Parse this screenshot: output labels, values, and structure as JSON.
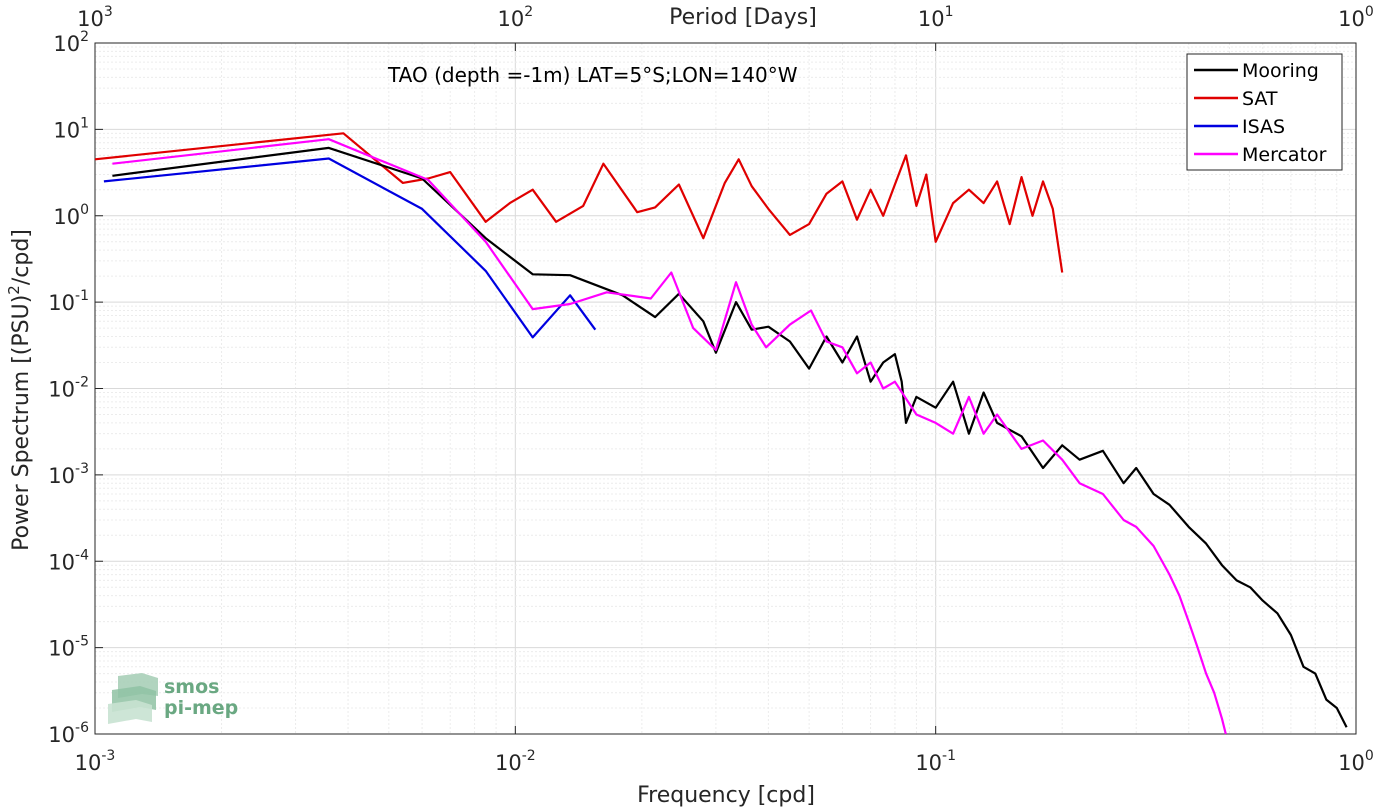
{
  "chart_data": {
    "type": "line",
    "title": "",
    "annotation": "TAO (depth =-1m) LAT=5°S;LON=140°W",
    "xlabel": "Frequency [cpd]",
    "ylabel": "Power Spectrum [(PSU)²/cpd]",
    "top_xlabel": "Period [Days]",
    "xscale": "log",
    "yscale": "log",
    "xlim": [
      0.001,
      1
    ],
    "ylim": [
      1e-06,
      100
    ],
    "top_xlim": [
      1000,
      1
    ],
    "grid": true,
    "legend_position": "top-right",
    "x_ticks": [
      {
        "v": 0.001,
        "base": "10",
        "exp": "-3"
      },
      {
        "v": 0.01,
        "base": "10",
        "exp": "-2"
      },
      {
        "v": 0.1,
        "base": "10",
        "exp": "-1"
      },
      {
        "v": 1,
        "base": "10",
        "exp": "0"
      }
    ],
    "top_ticks": [
      {
        "v": 0.001,
        "base": "10",
        "exp": "3"
      },
      {
        "v": 0.01,
        "base": "10",
        "exp": "2"
      },
      {
        "v": 0.1,
        "base": "10",
        "exp": "1"
      },
      {
        "v": 1,
        "base": "10",
        "exp": "0"
      }
    ],
    "y_ticks": [
      {
        "v": 100,
        "base": "10",
        "exp": "2"
      },
      {
        "v": 10,
        "base": "10",
        "exp": "1"
      },
      {
        "v": 1,
        "base": "10",
        "exp": "0"
      },
      {
        "v": 0.1,
        "base": "10",
        "exp": "-1"
      },
      {
        "v": 0.01,
        "base": "10",
        "exp": "-2"
      },
      {
        "v": 0.001,
        "base": "10",
        "exp": "-3"
      },
      {
        "v": 0.0001,
        "base": "10",
        "exp": "-4"
      },
      {
        "v": 1e-05,
        "base": "10",
        "exp": "-5"
      },
      {
        "v": 1e-06,
        "base": "10",
        "exp": "-6"
      }
    ],
    "series": [
      {
        "name": "Mooring",
        "color": "#000000",
        "x": [
          0.0011,
          0.0036,
          0.006,
          0.0085,
          0.011,
          0.0135,
          0.018,
          0.0215,
          0.0245,
          0.028,
          0.03,
          0.0335,
          0.0365,
          0.04,
          0.045,
          0.05,
          0.055,
          0.06,
          0.065,
          0.07,
          0.075,
          0.08,
          0.083,
          0.085,
          0.09,
          0.1,
          0.11,
          0.12,
          0.13,
          0.14,
          0.16,
          0.18,
          0.2,
          0.22,
          0.25,
          0.28,
          0.3,
          0.33,
          0.36,
          0.4,
          0.44,
          0.48,
          0.52,
          0.56,
          0.6,
          0.65,
          0.7,
          0.75,
          0.8,
          0.85,
          0.9,
          0.95
        ],
        "y": [
          2.9,
          6.1,
          2.7,
          0.55,
          0.21,
          0.205,
          0.12,
          0.067,
          0.125,
          0.06,
          0.026,
          0.1,
          0.048,
          0.052,
          0.035,
          0.017,
          0.04,
          0.02,
          0.04,
          0.012,
          0.02,
          0.025,
          0.012,
          0.004,
          0.008,
          0.006,
          0.012,
          0.003,
          0.009,
          0.004,
          0.0028,
          0.0012,
          0.0022,
          0.0015,
          0.0019,
          0.0008,
          0.0012,
          0.0006,
          0.00045,
          0.00025,
          0.00016,
          9e-05,
          6e-05,
          5e-05,
          3.5e-05,
          2.5e-05,
          1.4e-05,
          6e-06,
          5e-06,
          2.5e-06,
          2e-06,
          1.2e-06
        ]
      },
      {
        "name": "SAT",
        "color": "#e00000",
        "x": [
          0.001,
          0.0039,
          0.0054,
          0.0062,
          0.007,
          0.0085,
          0.0097,
          0.011,
          0.0125,
          0.0145,
          0.0162,
          0.0195,
          0.0215,
          0.0245,
          0.028,
          0.0315,
          0.034,
          0.0365,
          0.04,
          0.045,
          0.05,
          0.055,
          0.06,
          0.065,
          0.07,
          0.075,
          0.08,
          0.085,
          0.09,
          0.095,
          0.1,
          0.11,
          0.12,
          0.13,
          0.14,
          0.15,
          0.16,
          0.17,
          0.18,
          0.19,
          0.2
        ],
        "y": [
          4.5,
          9.0,
          2.4,
          2.7,
          3.2,
          0.85,
          1.4,
          2.0,
          0.85,
          1.3,
          4.0,
          1.1,
          1.25,
          2.3,
          0.55,
          2.4,
          4.5,
          2.2,
          1.2,
          0.6,
          0.8,
          1.8,
          2.5,
          0.9,
          2.0,
          1.0,
          2.3,
          5.0,
          1.3,
          3.0,
          0.5,
          1.4,
          2.0,
          1.4,
          2.5,
          0.8,
          2.8,
          1.0,
          2.5,
          1.2,
          0.22
        ]
      },
      {
        "name": "ISAS",
        "color": "#0000e0",
        "x": [
          0.00105,
          0.0036,
          0.006,
          0.0085,
          0.011,
          0.0135,
          0.0155
        ],
        "y": [
          2.5,
          4.6,
          1.2,
          0.23,
          0.039,
          0.12,
          0.048
        ]
      },
      {
        "name": "Mercator",
        "color": "#ff00ff",
        "x": [
          0.0011,
          0.0036,
          0.0062,
          0.0085,
          0.011,
          0.0135,
          0.0165,
          0.021,
          0.0235,
          0.0265,
          0.03,
          0.0335,
          0.0365,
          0.0395,
          0.045,
          0.0505,
          0.055,
          0.06,
          0.065,
          0.07,
          0.075,
          0.08,
          0.09,
          0.1,
          0.11,
          0.12,
          0.13,
          0.14,
          0.16,
          0.18,
          0.2,
          0.22,
          0.25,
          0.28,
          0.3,
          0.33,
          0.36,
          0.38,
          0.4,
          0.42,
          0.44,
          0.46,
          0.48,
          0.49
        ],
        "y": [
          4.0,
          7.7,
          2.6,
          0.5,
          0.083,
          0.095,
          0.13,
          0.11,
          0.22,
          0.05,
          0.028,
          0.17,
          0.055,
          0.03,
          0.055,
          0.08,
          0.035,
          0.03,
          0.015,
          0.02,
          0.01,
          0.012,
          0.005,
          0.004,
          0.003,
          0.008,
          0.003,
          0.005,
          0.002,
          0.0025,
          0.0015,
          0.0008,
          0.0006,
          0.0003,
          0.00025,
          0.00015,
          7e-05,
          4e-05,
          2e-05,
          1e-05,
          5e-06,
          3e-06,
          1.5e-06,
          1e-06
        ]
      }
    ]
  },
  "logo": {
    "line1": "smos",
    "line2": "pi-mep",
    "color": "#6aa882"
  }
}
